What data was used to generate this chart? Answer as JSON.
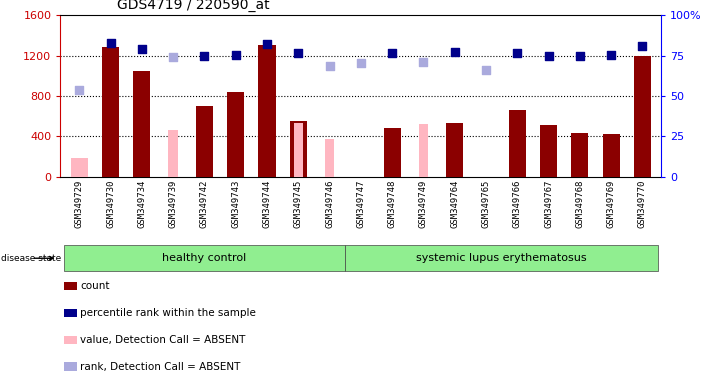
{
  "title": "GDS4719 / 220590_at",
  "samples": [
    "GSM349729",
    "GSM349730",
    "GSM349734",
    "GSM349739",
    "GSM349742",
    "GSM349743",
    "GSM349744",
    "GSM349745",
    "GSM349746",
    "GSM349747",
    "GSM349748",
    "GSM349749",
    "GSM349764",
    "GSM349765",
    "GSM349766",
    "GSM349767",
    "GSM349768",
    "GSM349769",
    "GSM349770"
  ],
  "healthy_count": 9,
  "groups": [
    "healthy control",
    "systemic lupus erythematosus"
  ],
  "count_values": [
    null,
    1290,
    1050,
    null,
    700,
    840,
    1310,
    550,
    null,
    null,
    480,
    null,
    530,
    null,
    660,
    510,
    430,
    420,
    1200
  ],
  "count_absent": [
    180,
    null,
    null,
    null,
    null,
    null,
    null,
    null,
    null,
    null,
    null,
    null,
    null,
    null,
    null,
    null,
    null,
    null,
    null
  ],
  "value_absent": [
    null,
    null,
    null,
    460,
    null,
    null,
    null,
    530,
    370,
    null,
    null,
    520,
    null,
    null,
    null,
    null,
    null,
    null,
    null
  ],
  "rank_present": [
    null,
    1330,
    1270,
    null,
    1195,
    1210,
    1320,
    1230,
    null,
    null,
    1230,
    null,
    1240,
    null,
    1230,
    1200,
    1200,
    1210,
    1300
  ],
  "rank_absent": [
    860,
    null,
    null,
    1190,
    null,
    null,
    null,
    null,
    1100,
    1130,
    null,
    1140,
    null,
    1060,
    null,
    null,
    null,
    null,
    null
  ],
  "ylim_left": [
    0,
    1600
  ],
  "ylim_right": [
    0,
    100
  ],
  "yticks_left": [
    0,
    400,
    800,
    1200,
    1600
  ],
  "yticks_right": [
    0,
    25,
    50,
    75,
    100
  ],
  "bar_color_count": "#8B0000",
  "bar_color_absent": "#FFB6C1",
  "dot_color_rank_present": "#00008B",
  "dot_color_rank_absent": "#AAAADD",
  "background_plot": "#ffffff",
  "background_group": "#90EE90",
  "xtick_bg": "#CCCCCC"
}
